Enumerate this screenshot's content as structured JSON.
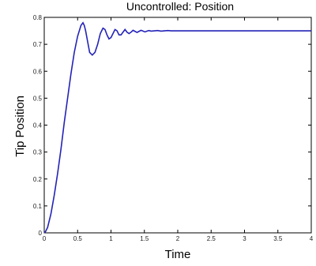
{
  "chart_data": {
    "type": "line",
    "title": "Uncontrolled: Position",
    "xlabel": "Time",
    "ylabel": "Tip Position",
    "xlim": [
      0,
      4
    ],
    "ylim": [
      0,
      0.8
    ],
    "x_ticks": [
      "0",
      "0.5",
      "1",
      "1.5",
      "2",
      "2.5",
      "3",
      "3.5",
      "4"
    ],
    "y_ticks": [
      "0",
      "0.1",
      "0.2",
      "0.3",
      "0.4",
      "0.5",
      "0.6",
      "0.7",
      "0.8"
    ],
    "grid": false,
    "line_color": "#2323b8",
    "series": [
      {
        "x": [
          0,
          0.02,
          0.05,
          0.1,
          0.15,
          0.2,
          0.25,
          0.3,
          0.35,
          0.4,
          0.45,
          0.5,
          0.55,
          0.58,
          0.6,
          0.62,
          0.65,
          0.68,
          0.72,
          0.76,
          0.8,
          0.84,
          0.88,
          0.91,
          0.94,
          0.97,
          1.0,
          1.03,
          1.06,
          1.09,
          1.12,
          1.15,
          1.18,
          1.21,
          1.24,
          1.27,
          1.3,
          1.33,
          1.36,
          1.39,
          1.42,
          1.45,
          1.48,
          1.51,
          1.54,
          1.57,
          1.6,
          1.65,
          1.7,
          1.75,
          1.8,
          1.85,
          1.9,
          2.0,
          2.5,
          3.0,
          3.5,
          4.0
        ],
        "y": [
          0.0,
          0.005,
          0.02,
          0.07,
          0.14,
          0.22,
          0.31,
          0.41,
          0.5,
          0.59,
          0.67,
          0.73,
          0.77,
          0.78,
          0.77,
          0.75,
          0.71,
          0.67,
          0.66,
          0.67,
          0.7,
          0.74,
          0.76,
          0.755,
          0.735,
          0.72,
          0.725,
          0.74,
          0.755,
          0.75,
          0.735,
          0.735,
          0.745,
          0.755,
          0.745,
          0.74,
          0.745,
          0.752,
          0.748,
          0.744,
          0.748,
          0.752,
          0.749,
          0.746,
          0.749,
          0.751,
          0.749,
          0.75,
          0.751,
          0.749,
          0.75,
          0.751,
          0.75,
          0.75,
          0.75,
          0.75,
          0.75,
          0.75
        ]
      }
    ]
  }
}
